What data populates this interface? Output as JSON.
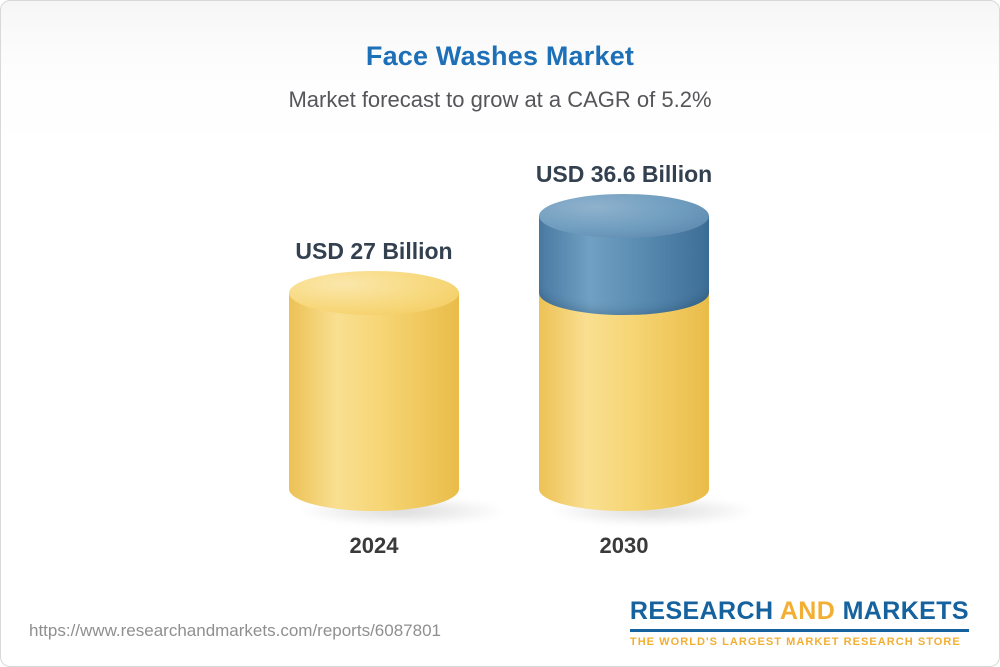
{
  "chart_data": {
    "type": "bar",
    "variant": "3d-cylinder",
    "title": "Face Washes Market",
    "subtitle": "Market forecast to grow at a CAGR of 5.2%",
    "cagr_percent": 5.2,
    "unit": "USD Billion",
    "categories": [
      "2024",
      "2030"
    ],
    "values": [
      27,
      36.6
    ],
    "value_labels": [
      "USD 27 Billion",
      "USD 36.6 Billion"
    ],
    "ylim": [
      0,
      36.6
    ],
    "legend": "none",
    "grid": false,
    "bars": [
      {
        "category": "2024",
        "value": 27,
        "label": "USD 27 Billion",
        "segments": [
          {
            "from": 0,
            "to": 27,
            "color": "#f5ce64"
          }
        ]
      },
      {
        "category": "2030",
        "value": 36.6,
        "label": "USD 36.6 Billion",
        "segments": [
          {
            "from": 0,
            "to": 27,
            "color": "#f5ce64"
          },
          {
            "from": 27,
            "to": 36.6,
            "color": "#5b89ae"
          }
        ]
      }
    ],
    "colors": {
      "title_blue": "#1d70b7",
      "bar_yellow": "#f5ce64",
      "bar_blue": "#5b89ae",
      "label_text": "#33404f"
    }
  },
  "footer": {
    "report_url": "https://www.researchandmarkets.com/reports/6087801",
    "logo": {
      "word1": "RESEARCH",
      "word2": "AND",
      "word3": "MARKETS",
      "tagline": "THE WORLD'S LARGEST MARKET RESEARCH STORE",
      "blue": "#15629e",
      "gold": "#f2af33"
    }
  }
}
